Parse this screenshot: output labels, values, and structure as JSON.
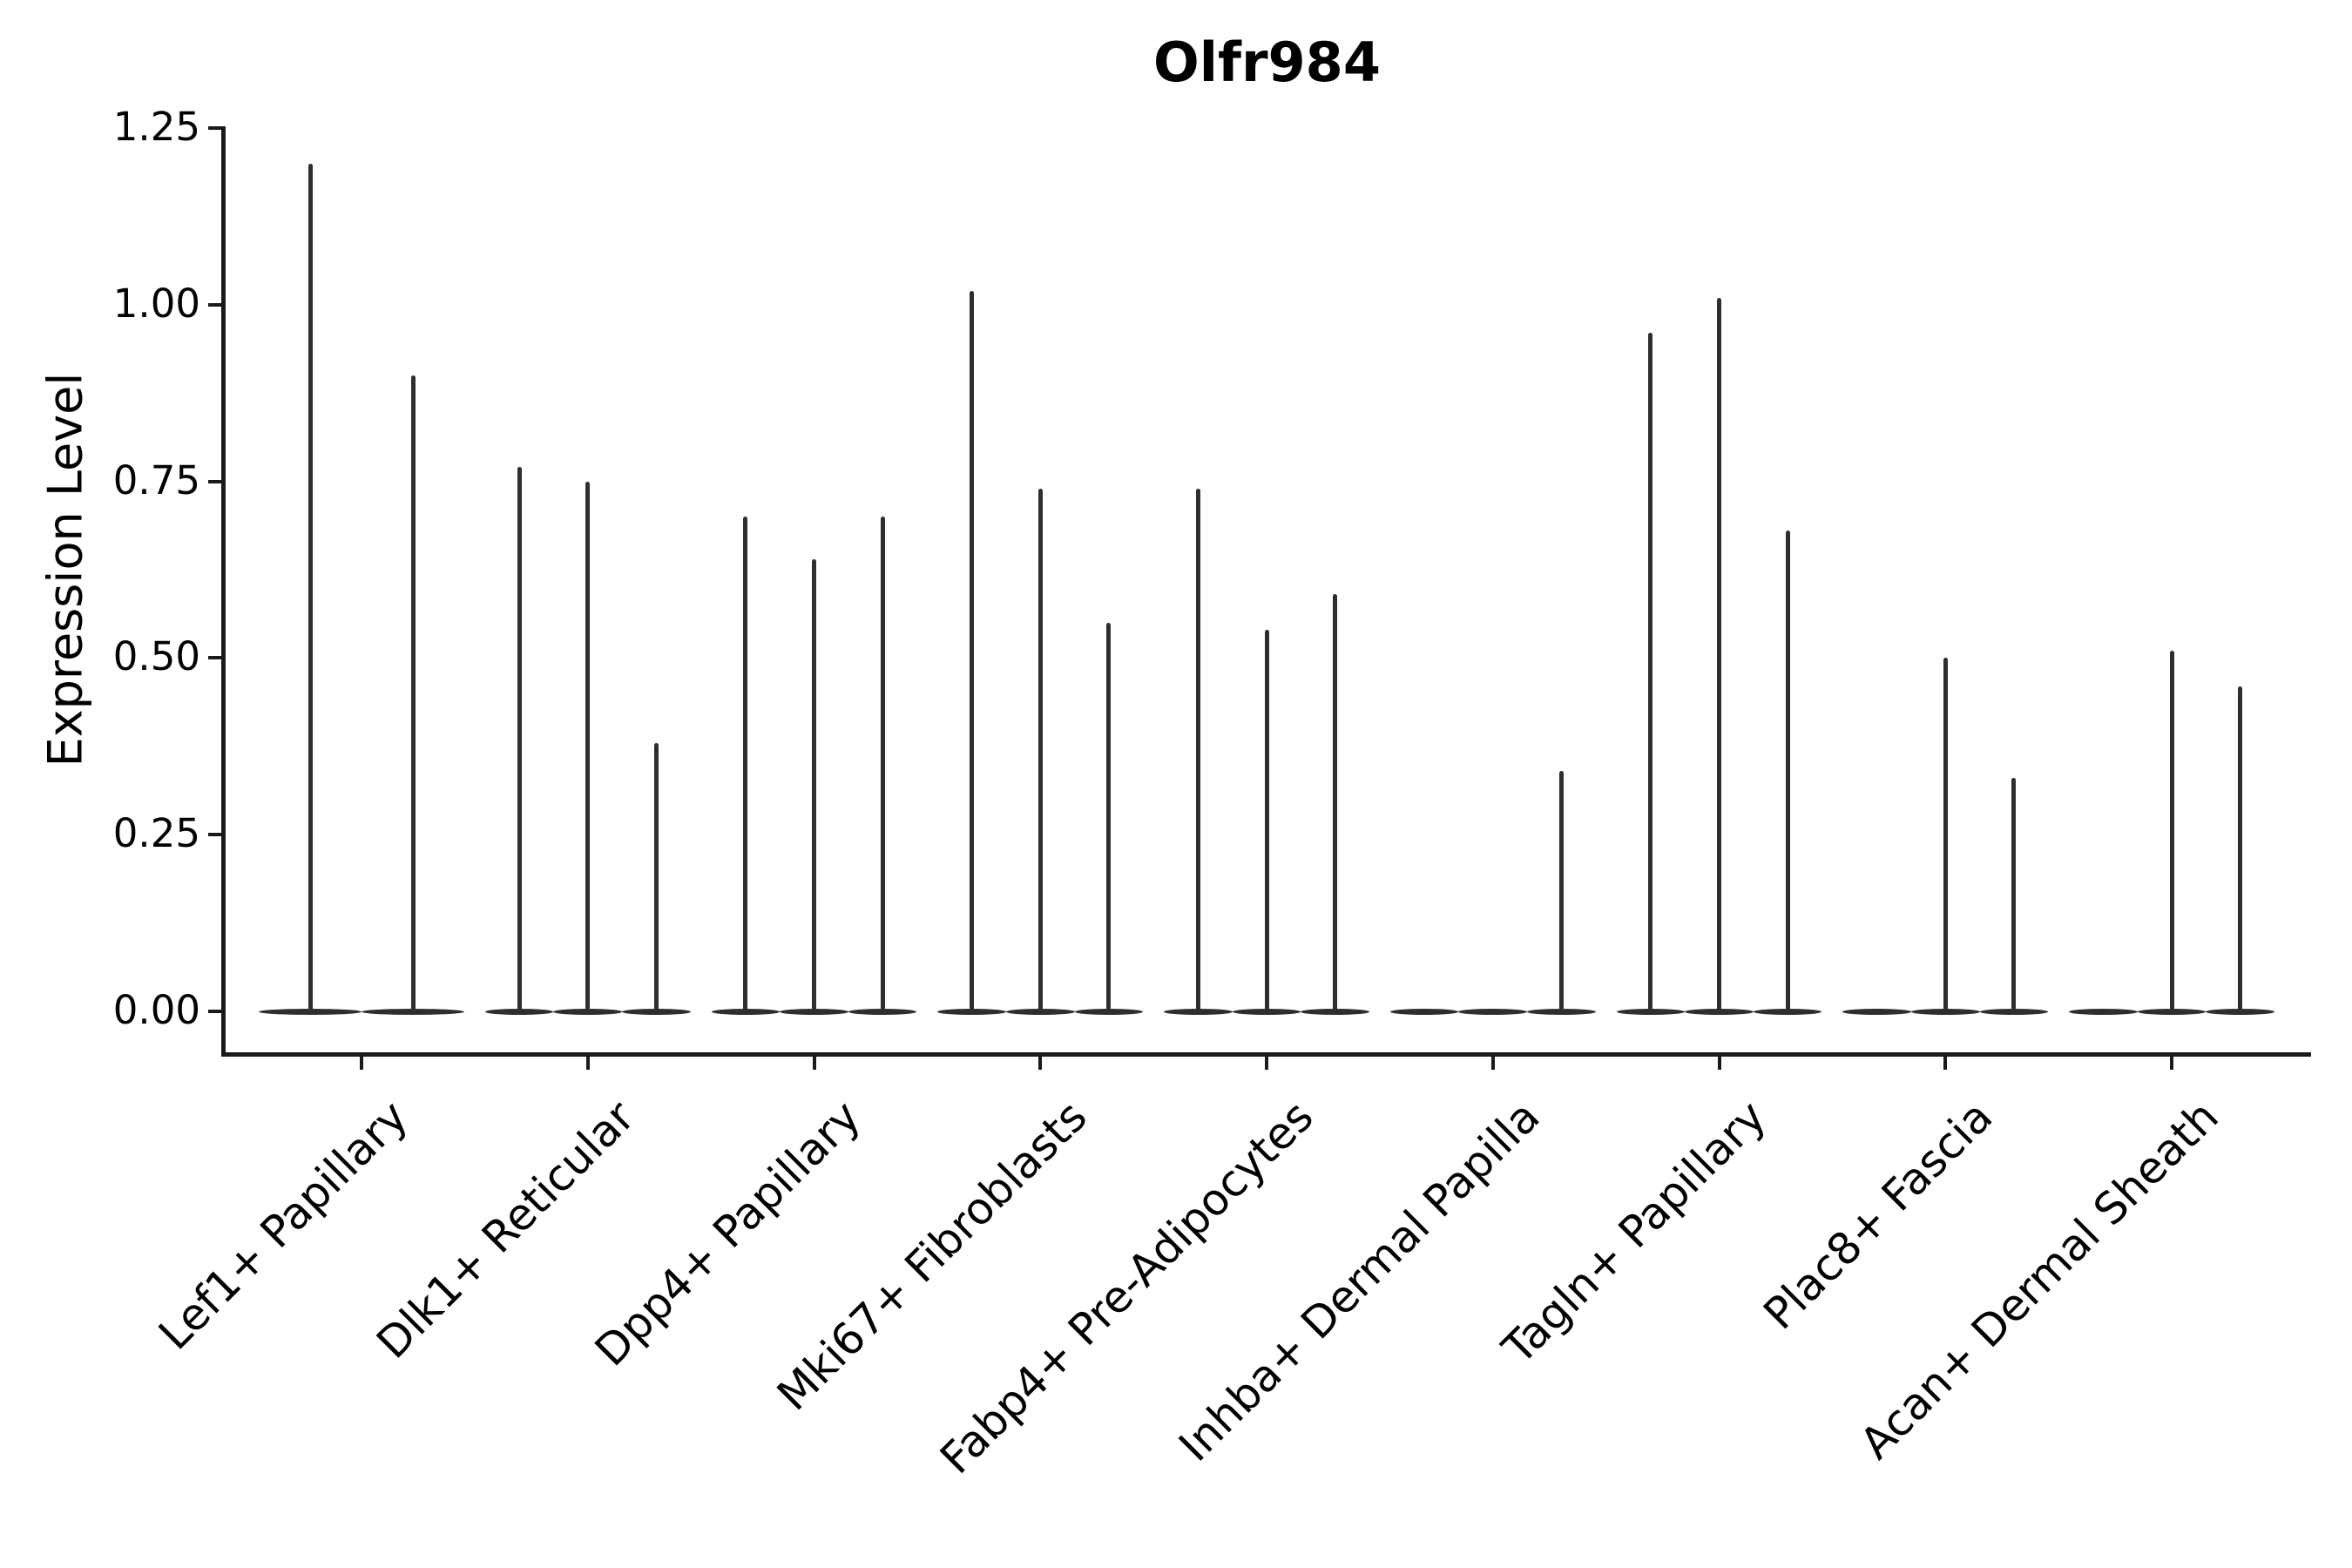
{
  "title": "Olfr984",
  "y_axis_label": "Expression Level",
  "chart_data": {
    "type": "violin",
    "title": "Olfr984",
    "xlabel": "",
    "ylabel": "Expression Level",
    "ylim": [
      0,
      1.25
    ],
    "yticks": [
      0.0,
      0.25,
      0.5,
      0.75,
      1.0,
      1.25
    ],
    "ytick_labels": [
      "0.00",
      "0.25",
      "0.50",
      "0.75",
      "1.00",
      "1.25"
    ],
    "grid": false,
    "legend": "none",
    "background": "#ffffff",
    "axis_color": "#1a1a1a",
    "text_color": "#000000",
    "violin_color": "#2e2e2e",
    "categories": [
      "Lef1+ Papillary",
      "Dlk1+ Reticular",
      "Dpp4+ Papillary",
      "Mki67+ Fibroblasts",
      "Fabp4+ Pre-Adipocytes",
      "Inhba+ Dermal Papilla",
      "Tagln+ Papillary",
      "Plac8+ Fascia",
      "Acan+ Dermal Sheath"
    ],
    "groups": [
      {
        "category": "Lef1+ Papillary",
        "violin_max_values": [
          1.2,
          0.9
        ]
      },
      {
        "category": "Dlk1+ Reticular",
        "violin_max_values": [
          0.77,
          0.75,
          0.38
        ]
      },
      {
        "category": "Dpp4+ Papillary",
        "violin_max_values": [
          0.7,
          0.64,
          0.7
        ]
      },
      {
        "category": "Mki67+ Fibroblasts",
        "violin_max_values": [
          1.02,
          0.74,
          0.55
        ]
      },
      {
        "category": "Fabp4+ Pre-Adipocytes",
        "violin_max_values": [
          0.74,
          0.54,
          0.59
        ]
      },
      {
        "category": "Inhba+ Dermal Papilla",
        "violin_max_values": [
          0.0,
          0.0,
          0.34
        ]
      },
      {
        "category": "Tagln+ Papillary",
        "violin_max_values": [
          0.96,
          1.01,
          0.68
        ]
      },
      {
        "category": "Plac8+ Fascia",
        "violin_max_values": [
          0.0,
          0.5,
          0.33
        ]
      },
      {
        "category": "Acan+ Dermal Sheath",
        "violin_max_values": [
          0.0,
          0.51,
          0.46
        ]
      }
    ],
    "notes": "All violins collapse to a flat base at expression 0; each thin spike marks the maximum expression reached in that sub-violin."
  }
}
